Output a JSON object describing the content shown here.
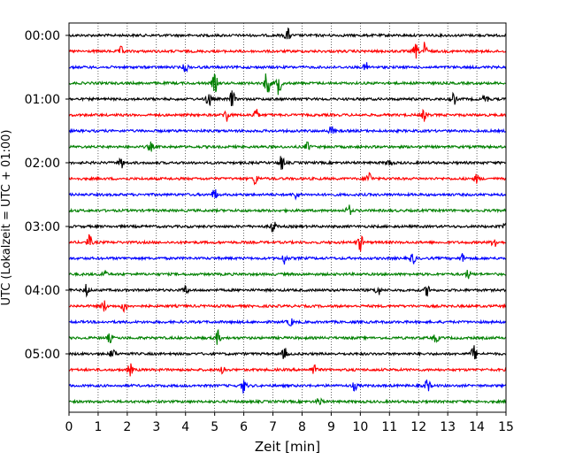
{
  "chart_data": {
    "type": "line",
    "title": "",
    "xlabel": "Zeit  [min]",
    "ylabel": "UTC (Lokalzeit = UTC + 01:00)",
    "xlim": [
      0,
      15
    ],
    "x_ticks": [
      "0",
      "1",
      "2",
      "3",
      "4",
      "5",
      "6",
      "7",
      "8",
      "9",
      "10",
      "11",
      "12",
      "13",
      "14",
      "15"
    ],
    "y_ticks": [
      "00:00",
      "01:00",
      "02:00",
      "03:00",
      "04:00",
      "05:00"
    ],
    "grid": "vertical-dotted",
    "trace_interval_min": 15,
    "traces_per_hour": 4,
    "trace_colors": [
      "#000000",
      "#ff0000",
      "#0000ff",
      "#008000"
    ],
    "series": [
      {
        "start": "00:00",
        "color": "#000000",
        "events": [
          [
            7.5,
            0.5
          ]
        ]
      },
      {
        "start": "00:15",
        "color": "#ff0000",
        "events": [
          [
            1.8,
            0.3
          ],
          [
            12.2,
            0.6
          ],
          [
            11.9,
            0.5
          ]
        ]
      },
      {
        "start": "00:30",
        "color": "#0000ff",
        "events": [
          [
            4.0,
            0.3
          ],
          [
            10.2,
            0.3
          ]
        ]
      },
      {
        "start": "00:45",
        "color": "#008000",
        "events": [
          [
            5.0,
            0.7
          ],
          [
            6.8,
            1.0
          ],
          [
            7.2,
            0.8
          ]
        ]
      },
      {
        "start": "01:00",
        "color": "#000000",
        "events": [
          [
            4.8,
            0.6
          ],
          [
            5.6,
            0.6
          ],
          [
            13.2,
            0.4
          ],
          [
            14.3,
            0.4
          ]
        ]
      },
      {
        "start": "01:15",
        "color": "#ff0000",
        "events": [
          [
            5.4,
            0.5
          ],
          [
            6.4,
            0.5
          ],
          [
            12.2,
            0.4
          ]
        ]
      },
      {
        "start": "01:30",
        "color": "#0000ff",
        "events": [
          [
            9.0,
            0.3
          ]
        ]
      },
      {
        "start": "01:45",
        "color": "#008000",
        "events": [
          [
            2.8,
            0.3
          ],
          [
            8.2,
            0.3
          ]
        ]
      },
      {
        "start": "02:00",
        "color": "#000000",
        "events": [
          [
            1.8,
            0.4
          ],
          [
            7.3,
            0.5
          ],
          [
            11.0,
            0.3
          ]
        ]
      },
      {
        "start": "02:15",
        "color": "#ff0000",
        "events": [
          [
            6.4,
            0.4
          ],
          [
            10.3,
            0.5
          ],
          [
            14.0,
            0.3
          ]
        ]
      },
      {
        "start": "02:30",
        "color": "#0000ff",
        "events": [
          [
            5.0,
            0.4
          ],
          [
            7.8,
            0.3
          ]
        ]
      },
      {
        "start": "02:45",
        "color": "#008000",
        "events": [
          [
            9.6,
            0.4
          ]
        ]
      },
      {
        "start": "03:00",
        "color": "#000000",
        "events": [
          [
            7.0,
            0.5
          ],
          [
            15.0,
            0.4
          ]
        ]
      },
      {
        "start": "03:15",
        "color": "#ff0000",
        "events": [
          [
            0.7,
            0.5
          ],
          [
            10.0,
            0.6
          ],
          [
            14.6,
            0.4
          ]
        ]
      },
      {
        "start": "03:30",
        "color": "#0000ff",
        "events": [
          [
            7.4,
            0.4
          ],
          [
            11.8,
            0.4
          ],
          [
            13.5,
            0.3
          ]
        ]
      },
      {
        "start": "03:45",
        "color": "#008000",
        "events": [
          [
            1.2,
            0.3
          ],
          [
            13.7,
            0.3
          ]
        ]
      },
      {
        "start": "04:00",
        "color": "#000000",
        "events": [
          [
            0.6,
            0.4
          ],
          [
            4.0,
            0.3
          ],
          [
            10.6,
            0.4
          ],
          [
            12.3,
            0.4
          ]
        ]
      },
      {
        "start": "04:15",
        "color": "#ff0000",
        "events": [
          [
            1.2,
            0.4
          ],
          [
            1.9,
            0.4
          ]
        ]
      },
      {
        "start": "04:30",
        "color": "#0000ff",
        "events": [
          [
            7.6,
            0.3
          ]
        ]
      },
      {
        "start": "04:45",
        "color": "#008000",
        "events": [
          [
            1.4,
            0.3
          ],
          [
            5.1,
            0.5
          ],
          [
            12.6,
            0.3
          ]
        ]
      },
      {
        "start": "05:00",
        "color": "#000000",
        "events": [
          [
            1.5,
            0.4
          ],
          [
            7.4,
            0.4
          ],
          [
            13.9,
            0.6
          ]
        ]
      },
      {
        "start": "05:15",
        "color": "#ff0000",
        "events": [
          [
            2.1,
            0.4
          ],
          [
            5.3,
            0.3
          ],
          [
            8.4,
            0.4
          ]
        ]
      },
      {
        "start": "05:30",
        "color": "#0000ff",
        "events": [
          [
            6.0,
            0.5
          ],
          [
            12.3,
            0.5
          ],
          [
            9.8,
            0.3
          ]
        ]
      },
      {
        "start": "05:45",
        "color": "#008000",
        "events": [
          [
            8.6,
            0.3
          ]
        ]
      }
    ]
  }
}
